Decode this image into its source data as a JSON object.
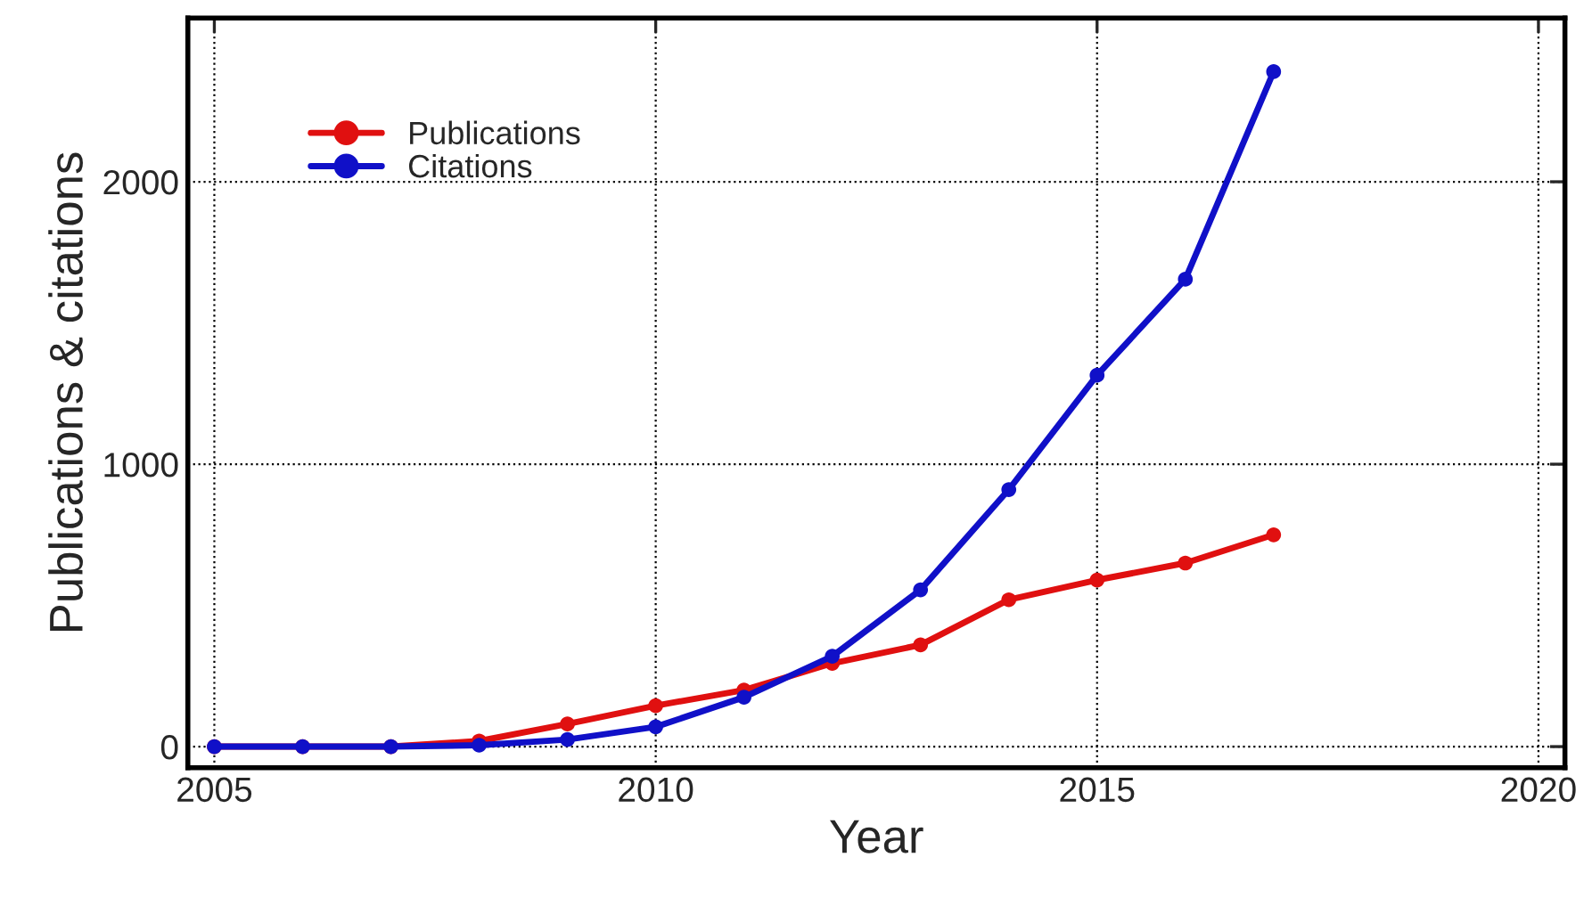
{
  "chart_data": {
    "type": "line",
    "xlabel": "Year",
    "ylabel": "Publications & citations",
    "x": [
      2005,
      2006,
      2007,
      2008,
      2009,
      2010,
      2011,
      2012,
      2013,
      2014,
      2015,
      2016,
      2017
    ],
    "series": [
      {
        "name": "Publications",
        "color": "#e01010",
        "values": [
          0,
          0,
          0,
          20,
          80,
          145,
          200,
          295,
          360,
          520,
          590,
          650,
          750
        ]
      },
      {
        "name": "Citations",
        "color": "#1010c8",
        "values": [
          0,
          0,
          0,
          5,
          25,
          70,
          175,
          320,
          555,
          910,
          1315,
          1655,
          2390
        ]
      }
    ],
    "xlim": [
      2004.7,
      2020.3
    ],
    "xticks": [
      2005,
      2010,
      2015,
      2020
    ],
    "ylim": [
      -75,
      2580
    ],
    "yticks": [
      0,
      1000,
      2000
    ],
    "grid": true,
    "legend": "top left",
    "marker": "circle",
    "line_style": "solid"
  }
}
